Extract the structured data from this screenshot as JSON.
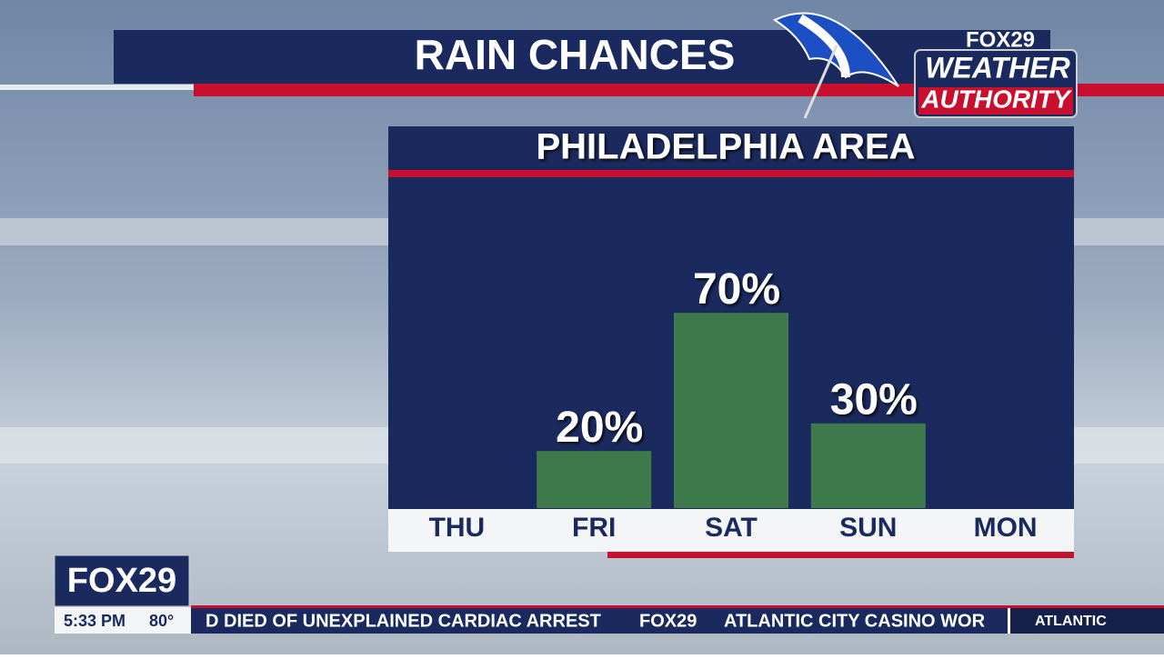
{
  "header": {
    "title": "RAIN CHANCES",
    "logo_top": "FOX29",
    "logo_mid": "WEATHER",
    "logo_bottom": "AUTHORITY"
  },
  "chart_data": {
    "type": "bar",
    "title": "PHILADELPHIA AREA",
    "categories": [
      "THU",
      "FRI",
      "SAT",
      "SUN",
      "MON"
    ],
    "values": [
      0,
      20,
      70,
      30,
      0
    ],
    "value_labels": [
      null,
      "20%",
      "70%",
      "30%",
      null
    ],
    "color": "#3f7a4c",
    "ylim": [
      0,
      100
    ]
  },
  "bug": {
    "station": "FOX29",
    "time": "5:33 PM",
    "temp": "80°"
  },
  "ticker": {
    "headline": "D DIED OF UNEXPLAINED CARDIAC ARREST",
    "logo": "FOX29",
    "next": "ATLANTIC CITY CASINO WOR",
    "section": "ATLANTIC"
  }
}
